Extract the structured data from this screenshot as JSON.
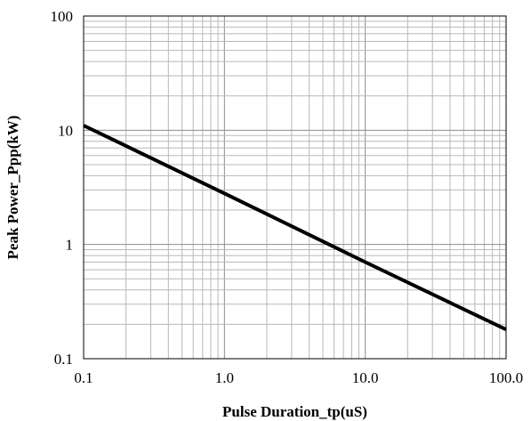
{
  "chart_data": {
    "type": "line",
    "xscale": "log",
    "yscale": "log",
    "xlabel": "Pulse Duration_tp(uS)",
    "ylabel": "Peak Power_Ppp(kW)",
    "xlim": [
      0.1,
      100
    ],
    "ylim": [
      0.1,
      100
    ],
    "x_ticks": [
      0.1,
      1,
      10,
      100
    ],
    "x_tick_labels": [
      "0.1",
      "1.0",
      "10.0",
      "100.0"
    ],
    "y_ticks": [
      0.1,
      1,
      10,
      100
    ],
    "y_tick_labels": [
      "0.1",
      "1",
      "10",
      "100"
    ],
    "grid": true,
    "series": [
      {
        "x": [
          0.1,
          1.0,
          10.0,
          100.0
        ],
        "y": [
          11,
          2.8,
          0.7,
          0.18
        ],
        "color": "#000000"
      }
    ]
  }
}
